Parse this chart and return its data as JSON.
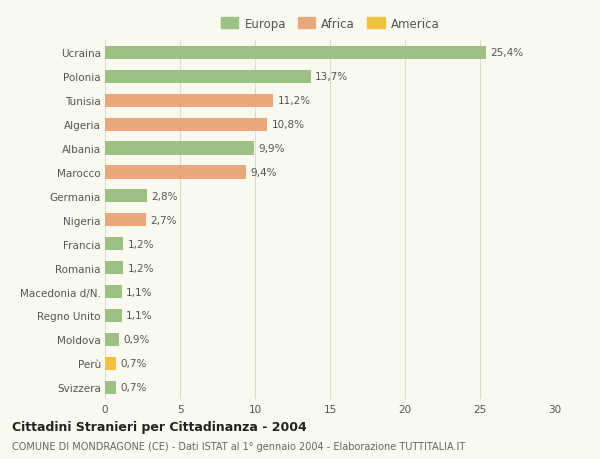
{
  "countries": [
    "Ucraina",
    "Polonia",
    "Tunisia",
    "Algeria",
    "Albania",
    "Marocco",
    "Germania",
    "Nigeria",
    "Francia",
    "Romania",
    "Macedonia d/N.",
    "Regno Unito",
    "Moldova",
    "Perù",
    "Svizzera"
  ],
  "values": [
    25.4,
    13.7,
    11.2,
    10.8,
    9.9,
    9.4,
    2.8,
    2.7,
    1.2,
    1.2,
    1.1,
    1.1,
    0.9,
    0.7,
    0.7
  ],
  "labels": [
    "25,4%",
    "13,7%",
    "11,2%",
    "10,8%",
    "9,9%",
    "9,4%",
    "2,8%",
    "2,7%",
    "1,2%",
    "1,2%",
    "1,1%",
    "1,1%",
    "0,9%",
    "0,7%",
    "0,7%"
  ],
  "continents": [
    "Europa",
    "Europa",
    "Africa",
    "Africa",
    "Europa",
    "Africa",
    "Europa",
    "Africa",
    "Europa",
    "Europa",
    "Europa",
    "Europa",
    "Europa",
    "America",
    "Europa"
  ],
  "colors": {
    "Europa": "#9dc184",
    "Africa": "#e8a87c",
    "America": "#f0c040"
  },
  "legend_order": [
    "Europa",
    "Africa",
    "America"
  ],
  "title_bold": "Cittadini Stranieri per Cittadinanza - 2004",
  "subtitle": "COMUNE DI MONDRAGONE (CE) - Dati ISTAT al 1° gennaio 2004 - Elaborazione TUTTITALIA.IT",
  "xlim": [
    0,
    30
  ],
  "xticks": [
    0,
    5,
    10,
    15,
    20,
    25,
    30
  ],
  "bg_color": "#f9f9f0",
  "grid_color": "#ddddcc",
  "bar_height": 0.55,
  "label_fontsize": 7.5,
  "tick_fontsize": 7.5,
  "legend_fontsize": 8.5,
  "title_fontsize": 9,
  "subtitle_fontsize": 7
}
